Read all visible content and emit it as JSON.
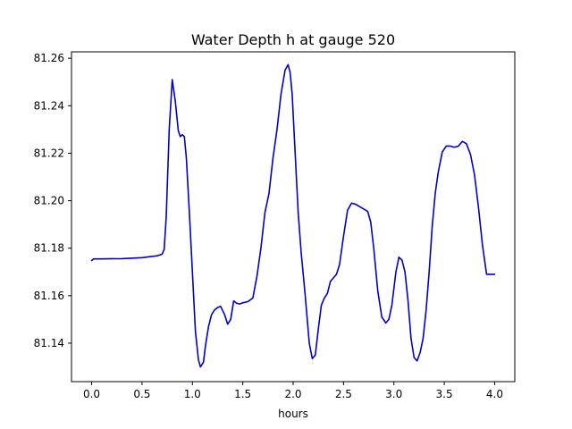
{
  "chart_data": {
    "type": "line",
    "title": "Water Depth h at gauge 520",
    "xlabel": "hours",
    "ylabel": "",
    "xlim": [
      -0.2,
      4.2
    ],
    "ylim": [
      81.1238,
      81.2627
    ],
    "x_ticks": [
      0.0,
      0.5,
      1.0,
      1.5,
      2.0,
      2.5,
      3.0,
      3.5,
      4.0
    ],
    "x_tick_labels": [
      "0.0",
      "0.5",
      "1.0",
      "1.5",
      "2.0",
      "2.5",
      "3.0",
      "3.5",
      "4.0"
    ],
    "y_ticks": [
      81.14,
      81.16,
      81.18,
      81.2,
      81.22,
      81.24,
      81.26
    ],
    "y_tick_labels": [
      "81.14",
      "81.16",
      "81.18",
      "81.20",
      "81.22",
      "81.24",
      "81.26"
    ],
    "grid": false,
    "series": [
      {
        "color": "#0000cc",
        "x": [
          0.0,
          0.02,
          0.1,
          0.3,
          0.5,
          0.65,
          0.7,
          0.72,
          0.74,
          0.77,
          0.8,
          0.83,
          0.86,
          0.88,
          0.9,
          0.92,
          0.94,
          0.97,
          1.0,
          1.03,
          1.06,
          1.08,
          1.11,
          1.13,
          1.16,
          1.19,
          1.22,
          1.25,
          1.28,
          1.32,
          1.35,
          1.38,
          1.41,
          1.44,
          1.47,
          1.5,
          1.55,
          1.6,
          1.64,
          1.68,
          1.72,
          1.76,
          1.8,
          1.84,
          1.88,
          1.92,
          1.95,
          1.97,
          1.99,
          2.02,
          2.05,
          2.08,
          2.12,
          2.16,
          2.19,
          2.22,
          2.25,
          2.28,
          2.31,
          2.34,
          2.37,
          2.4,
          2.43,
          2.46,
          2.5,
          2.54,
          2.58,
          2.62,
          2.66,
          2.7,
          2.74,
          2.77,
          2.8,
          2.84,
          2.88,
          2.92,
          2.95,
          2.98,
          3.02,
          3.05,
          3.08,
          3.11,
          3.14,
          3.17,
          3.2,
          3.23,
          3.26,
          3.29,
          3.32,
          3.35,
          3.38,
          3.41,
          3.44,
          3.48,
          3.52,
          3.56,
          3.6,
          3.64,
          3.68,
          3.72,
          3.76,
          3.8,
          3.84,
          3.88,
          3.92,
          3.96,
          4.0
        ],
        "y": [
          81.1748,
          81.1755,
          81.1755,
          81.1756,
          81.176,
          81.1768,
          81.1775,
          81.1795,
          81.193,
          81.23,
          81.251,
          81.242,
          81.2295,
          81.227,
          81.2278,
          81.227,
          81.218,
          81.195,
          81.17,
          81.145,
          81.133,
          81.13,
          81.132,
          81.139,
          81.147,
          81.152,
          81.154,
          81.155,
          81.1555,
          81.152,
          81.148,
          81.15,
          81.1578,
          81.1568,
          81.1565,
          81.157,
          81.1575,
          81.159,
          81.168,
          81.18,
          81.195,
          81.203,
          81.218,
          81.23,
          81.245,
          81.255,
          81.2573,
          81.254,
          81.245,
          81.22,
          81.195,
          81.178,
          81.16,
          81.14,
          81.1335,
          81.135,
          81.146,
          81.156,
          81.159,
          81.161,
          81.166,
          81.1675,
          81.169,
          81.173,
          81.185,
          81.196,
          81.199,
          81.1985,
          81.1975,
          81.1965,
          81.1955,
          81.191,
          81.18,
          81.162,
          81.151,
          81.1485,
          81.15,
          81.156,
          81.17,
          81.1762,
          81.175,
          81.17,
          81.158,
          81.142,
          81.134,
          81.1325,
          81.136,
          81.142,
          81.154,
          81.17,
          81.189,
          81.203,
          81.212,
          81.2205,
          81.223,
          81.223,
          81.2225,
          81.223,
          81.225,
          81.224,
          81.2195,
          81.211,
          81.197,
          81.181,
          81.169,
          81.169,
          81.169
        ]
      }
    ]
  }
}
